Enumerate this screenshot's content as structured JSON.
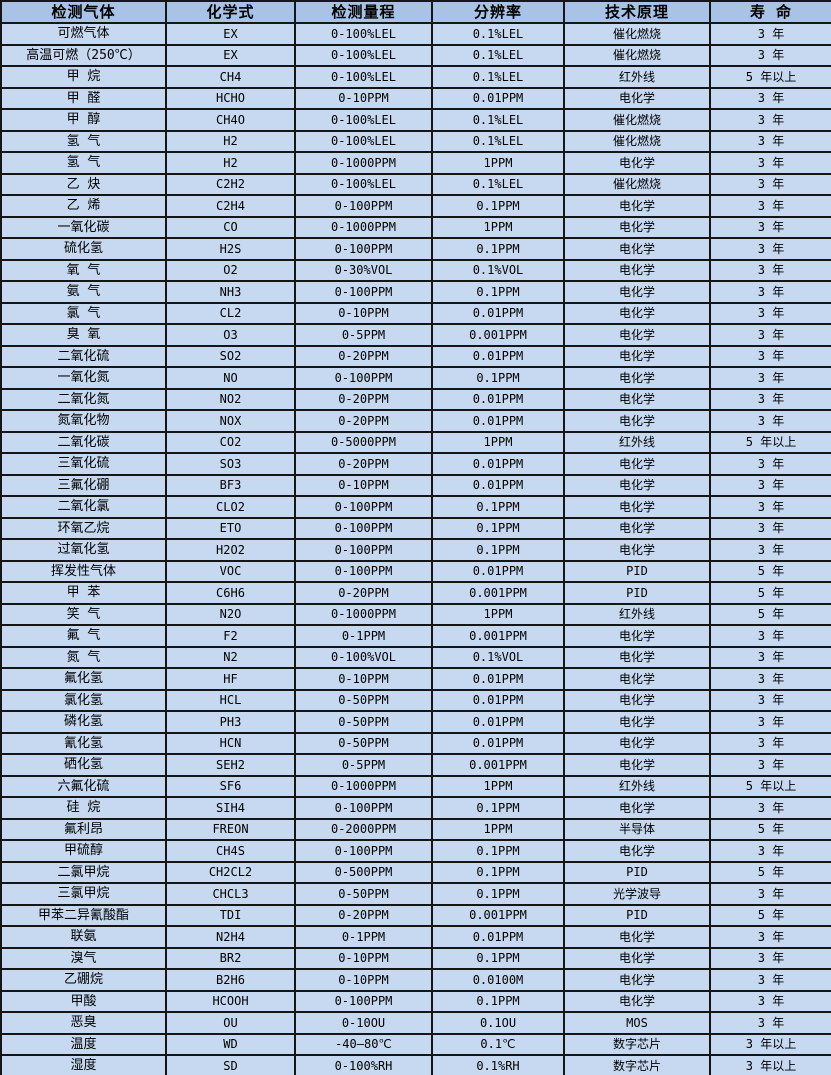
{
  "colors": {
    "header_bg": "#a9c3e6",
    "row_bg": "#c6d9f1",
    "border": "#161616",
    "text": "#000000"
  },
  "table": {
    "columns": [
      "检测气体",
      "化学式",
      "检测量程",
      "分辨率",
      "技术原理",
      "寿 命"
    ],
    "column_keys": [
      "gas",
      "formula",
      "range",
      "resolution",
      "principle",
      "lifespan"
    ],
    "rows": [
      [
        "可燃气体",
        "EX",
        "0-100%LEL",
        "0.1%LEL",
        "催化燃烧",
        "3 年"
      ],
      [
        "高温可燃（250℃）",
        "EX",
        "0-100%LEL",
        "0.1%LEL",
        "催化燃烧",
        "3 年"
      ],
      [
        "甲 烷",
        "CH4",
        "0-100%LEL",
        "0.1%LEL",
        "红外线",
        "5 年以上"
      ],
      [
        "甲 醛",
        "HCHO",
        "0-10PPM",
        "0.01PPM",
        "电化学",
        "3 年"
      ],
      [
        "甲 醇",
        "CH4O",
        "0-100%LEL",
        "0.1%LEL",
        "催化燃烧",
        "3 年"
      ],
      [
        "氢 气",
        "H2",
        "0-100%LEL",
        "0.1%LEL",
        "催化燃烧",
        "3 年"
      ],
      [
        "氢 气",
        "H2",
        "0-1000PPM",
        "1PPM",
        "电化学",
        "3 年"
      ],
      [
        "乙 炔",
        "C2H2",
        "0-100%LEL",
        "0.1%LEL",
        "催化燃烧",
        "3 年"
      ],
      [
        "乙 烯",
        "C2H4",
        "0-100PPM",
        "0.1PPM",
        "电化学",
        "3 年"
      ],
      [
        "一氧化碳",
        "CO",
        "0-1000PPM",
        "1PPM",
        "电化学",
        "3 年"
      ],
      [
        "硫化氢",
        "H2S",
        "0-100PPM",
        "0.1PPM",
        "电化学",
        "3 年"
      ],
      [
        "氧 气",
        "O2",
        "0-30%VOL",
        "0.1%VOL",
        "电化学",
        "3 年"
      ],
      [
        "氨 气",
        "NH3",
        "0-100PPM",
        "0.1PPM",
        "电化学",
        "3 年"
      ],
      [
        "氯 气",
        "CL2",
        "0-10PPM",
        "0.01PPM",
        "电化学",
        "3 年"
      ],
      [
        "臭 氧",
        "O3",
        "0-5PPM",
        "0.001PPM",
        "电化学",
        "3 年"
      ],
      [
        "二氧化硫",
        "SO2",
        "0-20PPM",
        "0.01PPM",
        "电化学",
        "3 年"
      ],
      [
        "一氧化氮",
        "NO",
        "0-100PPM",
        "0.1PPM",
        "电化学",
        "3 年"
      ],
      [
        "二氧化氮",
        "NO2",
        "0-20PPM",
        "0.01PPM",
        "电化学",
        "3 年"
      ],
      [
        "氮氧化物",
        "NOX",
        "0-20PPM",
        "0.01PPM",
        "电化学",
        "3 年"
      ],
      [
        "二氧化碳",
        "CO2",
        "0-5000PPM",
        "1PPM",
        "红外线",
        "5 年以上"
      ],
      [
        "三氧化硫",
        "SO3",
        "0-20PPM",
        "0.01PPM",
        "电化学",
        "3 年"
      ],
      [
        "三氟化硼",
        "BF3",
        "0-10PPM",
        "0.01PPM",
        "电化学",
        "3 年"
      ],
      [
        "二氧化氯",
        "CLO2",
        "0-100PPM",
        "0.1PPM",
        "电化学",
        "3 年"
      ],
      [
        "环氧乙烷",
        "ETO",
        "0-100PPM",
        "0.1PPM",
        "电化学",
        "3 年"
      ],
      [
        "过氧化氢",
        "H2O2",
        "0-100PPM",
        "0.1PPM",
        "电化学",
        "3 年"
      ],
      [
        "挥发性气体",
        "VOC",
        "0-100PPM",
        "0.01PPM",
        "PID",
        "5 年"
      ],
      [
        "甲 苯",
        "C6H6",
        "0-20PPM",
        "0.001PPM",
        "PID",
        "5 年"
      ],
      [
        "笑 气",
        "N2O",
        "0-1000PPM",
        "1PPM",
        "红外线",
        "5 年"
      ],
      [
        "氟 气",
        "F2",
        "0-1PPM",
        "0.001PPM",
        "电化学",
        "3 年"
      ],
      [
        "氮 气",
        "N2",
        "0-100%VOL",
        "0.1%VOL",
        "电化学",
        "3 年"
      ],
      [
        "氟化氢",
        "HF",
        "0-10PPM",
        "0.01PPM",
        "电化学",
        "3 年"
      ],
      [
        "氯化氢",
        "HCL",
        "0-50PPM",
        "0.01PPM",
        "电化学",
        "3 年"
      ],
      [
        "磷化氢",
        "PH3",
        "0-50PPM",
        "0.01PPM",
        "电化学",
        "3 年"
      ],
      [
        "氰化氢",
        "HCN",
        "0-50PPM",
        "0.01PPM",
        "电化学",
        "3 年"
      ],
      [
        "硒化氢",
        "SEH2",
        "0-5PPM",
        "0.001PPM",
        "电化学",
        "3 年"
      ],
      [
        "六氟化硫",
        "SF6",
        "0-1000PPM",
        "1PPM",
        "红外线",
        "5 年以上"
      ],
      [
        "硅 烷",
        "SIH4",
        "0-100PPM",
        "0.1PPM",
        "电化学",
        "3 年"
      ],
      [
        "氟利昂",
        "FREON",
        "0-2000PPM",
        "1PPM",
        "半导体",
        "5 年"
      ],
      [
        "甲硫醇",
        "CH4S",
        "0-100PPM",
        "0.1PPM",
        "电化学",
        "3 年"
      ],
      [
        "二氯甲烷",
        "CH2CL2",
        "0-500PPM",
        "0.1PPM",
        "PID",
        "5 年"
      ],
      [
        "三氯甲烷",
        "CHCL3",
        "0-50PPM",
        "0.1PPM",
        "光学波导",
        "3 年"
      ],
      [
        "甲苯二异氰酸酯",
        "TDI",
        "0-20PPM",
        "0.001PPM",
        "PID",
        "5 年"
      ],
      [
        "联氨",
        "N2H4",
        "0-1PPM",
        "0.01PPM",
        "电化学",
        "3 年"
      ],
      [
        "溴气",
        "BR2",
        "0-10PPM",
        "0.1PPM",
        "电化学",
        "3 年"
      ],
      [
        "乙硼烷",
        "B2H6",
        "0-10PPM",
        "0.0100M",
        "电化学",
        "3 年"
      ],
      [
        "甲酸",
        "HCOOH",
        "0-100PPM",
        "0.1PPM",
        "电化学",
        "3 年"
      ],
      [
        "恶臭",
        "OU",
        "0-10OU",
        "0.1OU",
        "MOS",
        "3 年"
      ],
      [
        "温度",
        "WD",
        "-40—80℃",
        "0.1℃",
        "数字芯片",
        "3 年以上"
      ],
      [
        "湿度",
        "SD",
        "0-100%RH",
        "0.1%RH",
        "数字芯片",
        "3 年以上"
      ]
    ]
  }
}
